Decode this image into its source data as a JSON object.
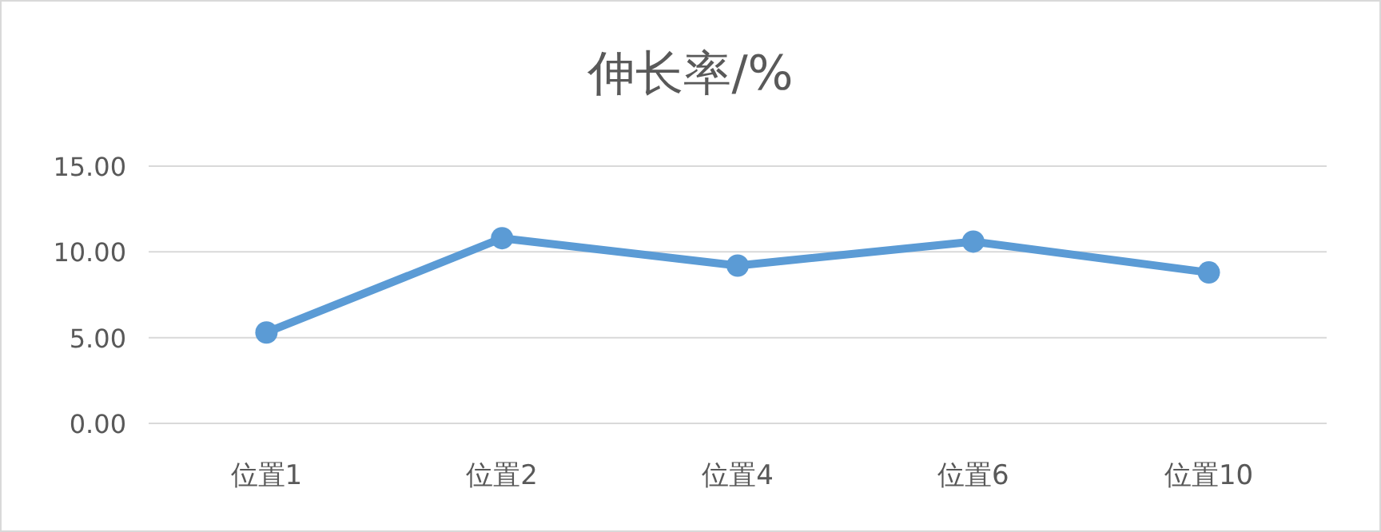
{
  "chart_data": {
    "type": "line",
    "title": "伸长率/%",
    "categories": [
      "位置1",
      "位置2",
      "位置4",
      "位置6",
      "位置10"
    ],
    "series": [
      {
        "color": "#5b9bd5",
        "values": [
          5.3,
          10.8,
          9.2,
          10.6,
          8.8
        ]
      }
    ],
    "ylim": [
      0,
      15
    ],
    "yticks": [
      {
        "value": 0,
        "label": "0.00"
      },
      {
        "value": 5,
        "label": "5.00"
      },
      {
        "value": 10,
        "label": "10.00"
      },
      {
        "value": 15,
        "label": "15.00"
      }
    ],
    "grid": "y",
    "marker": "circle",
    "line_style": "solid"
  }
}
